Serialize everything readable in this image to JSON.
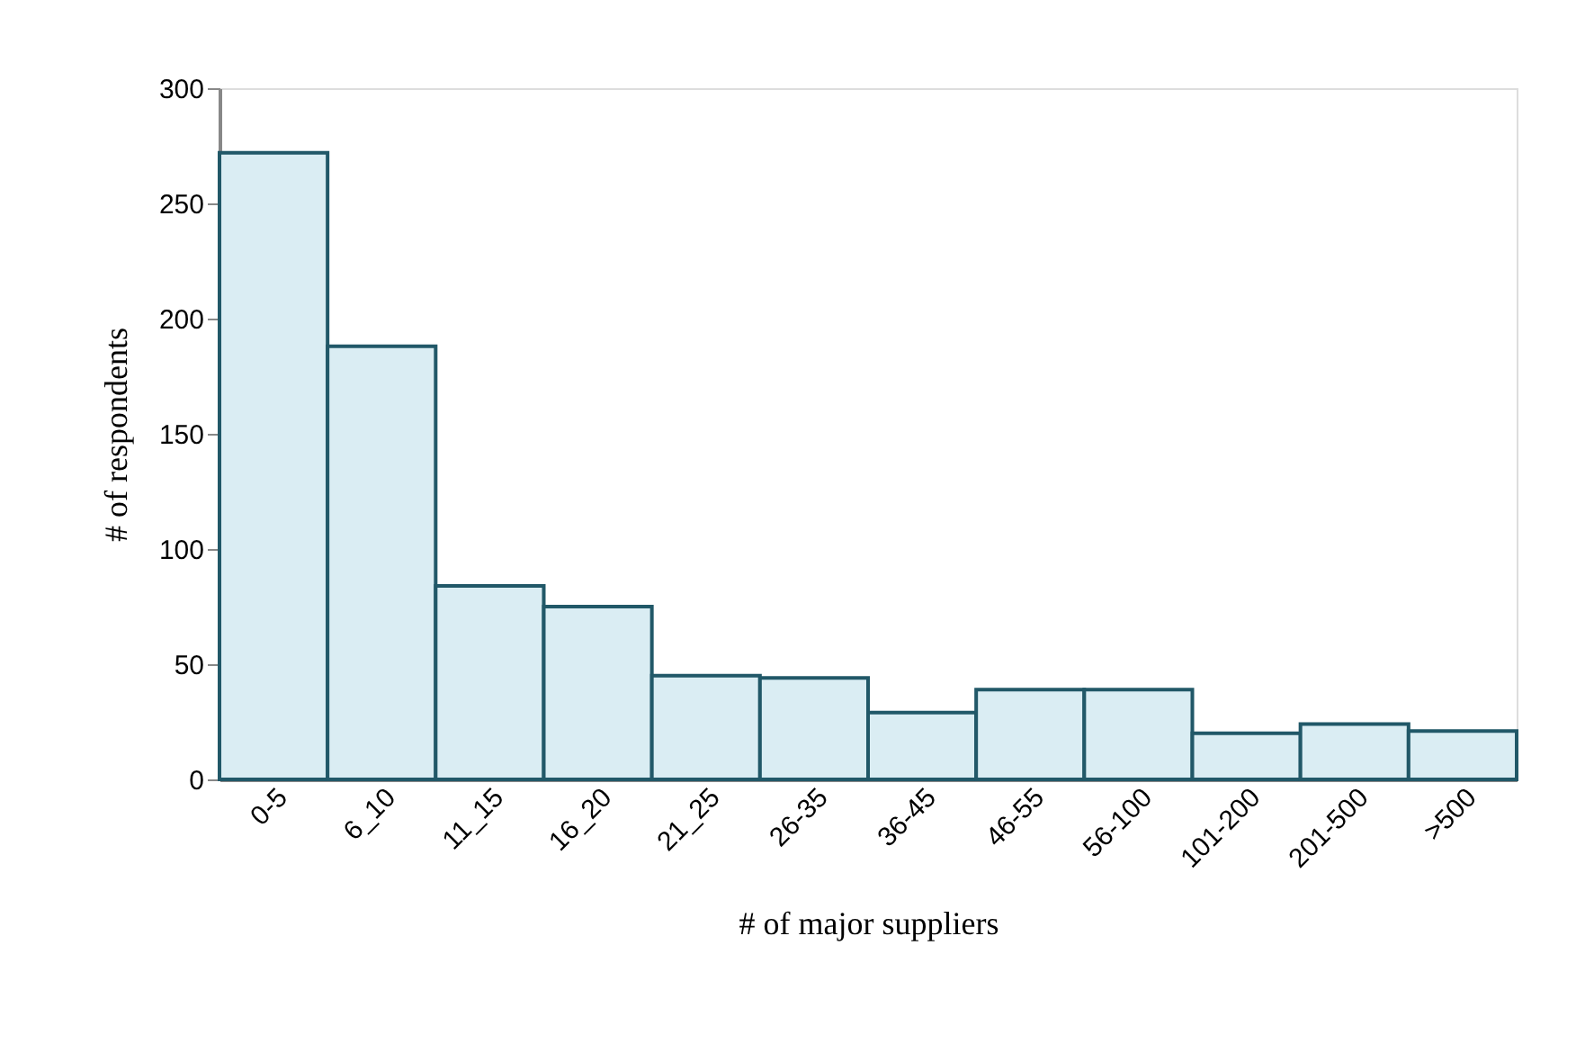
{
  "chart_data": {
    "type": "bar",
    "categories": [
      "0-5",
      "6_10",
      "11_15",
      "16_20",
      "21_25",
      "26-35",
      "36-45",
      "46-55",
      "56-100",
      "101-200",
      "201-500",
      ">500"
    ],
    "values": [
      272,
      188,
      84,
      75,
      45,
      44,
      29,
      39,
      39,
      20,
      24,
      21
    ],
    "color": "#daedf3",
    "xlabel": "# of major suppliers",
    "ylabel": "# of respondents",
    "ylim": [
      0,
      300
    ],
    "yticks": [
      0,
      50,
      100,
      150,
      200,
      250,
      300
    ],
    "grid": false
  }
}
